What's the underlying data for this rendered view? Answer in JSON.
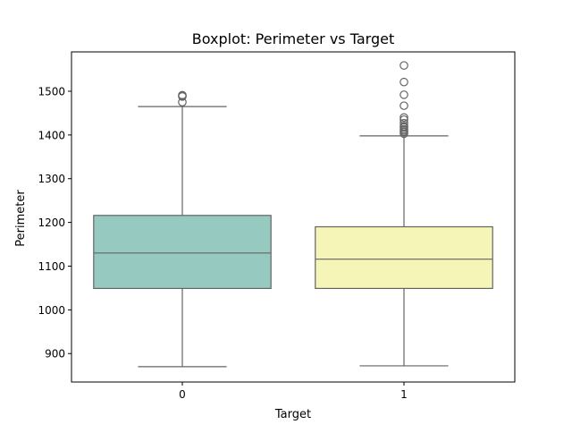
{
  "chart_data": {
    "type": "box",
    "title": "Boxplot: Perimeter vs Target",
    "xlabel": "Target",
    "ylabel": "Perimeter",
    "ylim": [
      835,
      1590
    ],
    "yticks": [
      900,
      1000,
      1100,
      1200,
      1300,
      1400,
      1500
    ],
    "categories": [
      "0",
      "1"
    ],
    "grid": false,
    "boxes": [
      {
        "category": "0",
        "color": "#96cac0",
        "whisker_low": 870,
        "q1": 1049,
        "median": 1130,
        "q3": 1216,
        "whisker_high": 1465,
        "outliers": [
          1475,
          1488,
          1490,
          1491
        ]
      },
      {
        "category": "1",
        "color": "#f5f5b7",
        "whisker_low": 872,
        "q1": 1049,
        "median": 1116,
        "q3": 1190,
        "whisker_high": 1398,
        "outliers": [
          1403,
          1407,
          1410,
          1413,
          1417,
          1420,
          1427,
          1435,
          1440,
          1467,
          1492,
          1521,
          1559
        ]
      }
    ]
  }
}
